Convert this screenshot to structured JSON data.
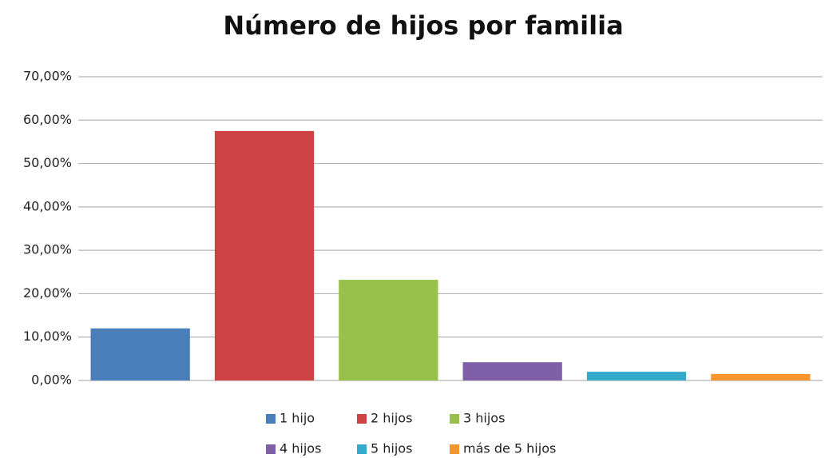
{
  "chart_data": {
    "type": "bar",
    "title": "Número de hijos por familia",
    "series": [
      {
        "name": "1 hijo",
        "color": "#4a7ebb",
        "values": [
          12.0
        ]
      },
      {
        "name": "2 hijos",
        "color": "#cd4343",
        "values": [
          57.5
        ]
      },
      {
        "name": "3 hijos",
        "color": "#98c14c",
        "values": [
          23.2
        ]
      },
      {
        "name": "4 hijos",
        "color": "#7f5fa8",
        "values": [
          4.2
        ]
      },
      {
        "name": "5 hijos",
        "color": "#35aacb",
        "values": [
          2.0
        ]
      },
      {
        "name": "más de 5 hijos",
        "color": "#f7952f",
        "values": [
          1.5
        ]
      }
    ],
    "ylim": [
      0,
      70
    ],
    "yticks": [
      {
        "value": 0,
        "label": "0,00%"
      },
      {
        "value": 10,
        "label": "10,00%"
      },
      {
        "value": 20,
        "label": "20,00%"
      },
      {
        "value": 30,
        "label": "30,00%"
      },
      {
        "value": 40,
        "label": "40,00%"
      },
      {
        "value": 50,
        "label": "50,00%"
      },
      {
        "value": 60,
        "label": "60,00%"
      },
      {
        "value": 70,
        "label": "70,00%"
      }
    ],
    "grid": true
  }
}
